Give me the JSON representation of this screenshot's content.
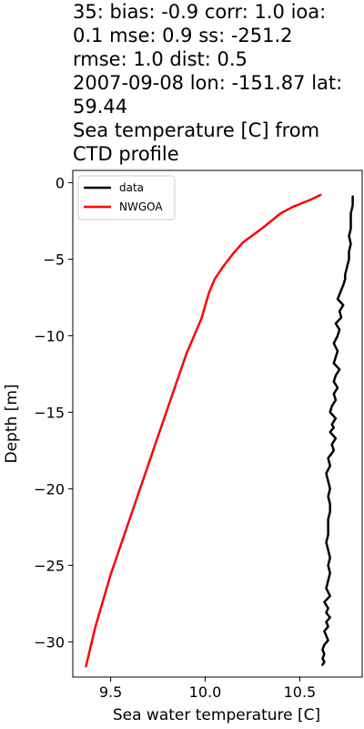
{
  "title_lines": [
    "35: bias: -0.9  corr: 1.0  ioa:",
    "0.1  mse: 0.9  ss: -251.2",
    "rmse: 1.0  dist: 0.5",
    "2007-09-08 lon: -151.87 lat:",
    "59.44",
    "Sea temperature [C] from",
    "CTD profile"
  ],
  "colors": {
    "data": "#000000",
    "NWGOA": "#ff0000"
  },
  "chart_data": {
    "type": "line",
    "title": "35: bias: -0.9  corr: 1.0  ioa: 0.1  mse: 0.9  ss: -251.2 rmse: 1.0  dist: 0.5 2007-09-08 lon: -151.87 lat: 59.44 Sea temperature [C] from CTD profile",
    "xlabel": "Sea water temperature [C]",
    "ylabel": "Depth [m]",
    "xlim": [
      9.3,
      10.83
    ],
    "ylim": [
      -32.3,
      0.8
    ],
    "xticks": [
      9.5,
      10.0,
      10.5
    ],
    "xtick_labels": [
      "9.5",
      "10.0",
      "10.5"
    ],
    "yticks": [
      0,
      -5,
      -10,
      -15,
      -20,
      -25,
      -30
    ],
    "ytick_labels": [
      "0",
      "−5",
      "−10",
      "−15",
      "−20",
      "−25",
      "−30"
    ],
    "legend": {
      "placement": "top-left",
      "entries": [
        "data",
        "NWGOA"
      ]
    },
    "grid": false,
    "series": [
      {
        "name": "data",
        "x": [
          10.78,
          10.78,
          10.77,
          10.77,
          10.77,
          10.76,
          10.77,
          10.76,
          10.76,
          10.75,
          10.74,
          10.74,
          10.73,
          10.72,
          10.71,
          10.7,
          10.73,
          10.71,
          10.72,
          10.69,
          10.71,
          10.7,
          10.68,
          10.7,
          10.69,
          10.68,
          10.71,
          10.69,
          10.68,
          10.7,
          10.68,
          10.69,
          10.67,
          10.66,
          10.69,
          10.67,
          10.68,
          10.66,
          10.69,
          10.67,
          10.68,
          10.65,
          10.66,
          10.64,
          10.65,
          10.66,
          10.65,
          10.66,
          10.66,
          10.65,
          10.65,
          10.65,
          10.64,
          10.65,
          10.66,
          10.65,
          10.66,
          10.65,
          10.64,
          10.66,
          10.63,
          10.65,
          10.64,
          10.66,
          10.64,
          10.65,
          10.63,
          10.64,
          10.65,
          10.63,
          10.62,
          10.63,
          10.62,
          10.63,
          10.62
        ],
        "y": [
          -0.9,
          -1.5,
          -2.0,
          -2.5,
          -3.0,
          -3.5,
          -4.0,
          -4.5,
          -5.0,
          -5.5,
          -6.0,
          -6.3,
          -6.7,
          -7.0,
          -7.3,
          -7.6,
          -8.0,
          -8.4,
          -8.8,
          -9.2,
          -9.6,
          -10.0,
          -10.5,
          -11.0,
          -11.4,
          -11.8,
          -12.2,
          -12.6,
          -13.0,
          -13.4,
          -13.8,
          -14.2,
          -14.6,
          -15.0,
          -15.4,
          -15.8,
          -16.0,
          -16.3,
          -16.7,
          -17.1,
          -17.5,
          -18.0,
          -18.5,
          -19.0,
          -19.5,
          -20.0,
          -20.5,
          -21.0,
          -21.5,
          -22.0,
          -22.5,
          -23.0,
          -23.5,
          -24.0,
          -24.5,
          -25.0,
          -25.5,
          -26.0,
          -26.5,
          -27.0,
          -27.4,
          -27.8,
          -28.1,
          -28.4,
          -28.7,
          -29.0,
          -29.3,
          -29.6,
          -29.9,
          -30.2,
          -30.5,
          -30.8,
          -31.1,
          -31.3,
          -31.5
        ]
      },
      {
        "name": "NWGOA",
        "x": [
          10.61,
          10.56,
          10.46,
          10.4,
          10.3,
          10.2,
          10.15,
          10.1,
          10.05,
          10.02,
          9.98,
          9.9,
          9.8,
          9.7,
          9.6,
          9.5,
          9.42,
          9.37
        ],
        "y": [
          -0.8,
          -1.1,
          -1.6,
          -2.0,
          -3.0,
          -3.9,
          -4.6,
          -5.4,
          -6.3,
          -7.2,
          -8.9,
          -11.2,
          -14.8,
          -18.4,
          -22.0,
          -25.6,
          -29.0,
          -31.6
        ]
      }
    ]
  }
}
